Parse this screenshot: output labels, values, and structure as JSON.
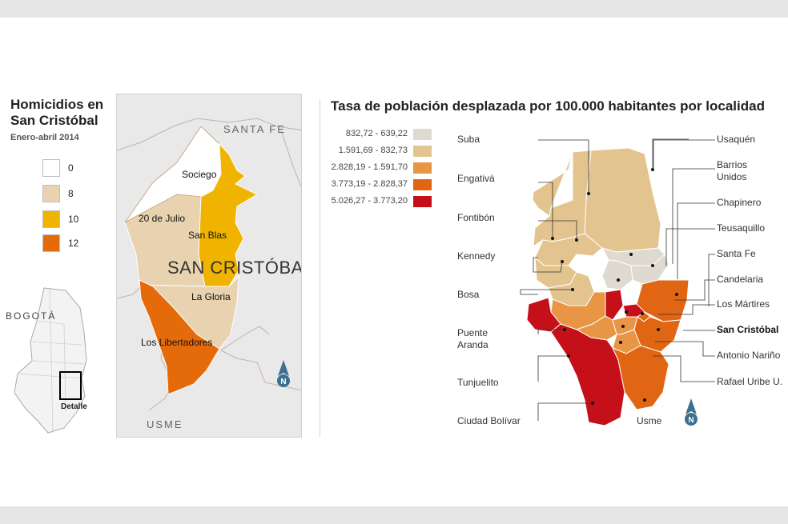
{
  "left_panel": {
    "title": "Homicidios en San Cristóbal",
    "subtitle": "Enero-abril 2014",
    "legend": [
      {
        "label": "0",
        "color": "#ffffff"
      },
      {
        "label": "8",
        "color": "#e8d2af"
      },
      {
        "label": "10",
        "color": "#f0b400"
      },
      {
        "label": "12",
        "color": "#e56b0a"
      }
    ],
    "inset_label": "BOGOTÁ",
    "detail_label": "Detalle",
    "map": {
      "region_labels": [
        "SANTA FE",
        "USME"
      ],
      "locality_label": "SAN CRISTÓBAL",
      "neighborhoods": [
        {
          "name": "Sociego",
          "homicides": 0
        },
        {
          "name": "20 de Julio",
          "homicides": 8
        },
        {
          "name": "San Blas",
          "homicides": 10
        },
        {
          "name": "La Gloria",
          "homicides": 8
        },
        {
          "name": "Los Libertadores",
          "homicides": 12
        }
      ]
    }
  },
  "right_panel": {
    "title": "Tasa de población desplazada por 100.000 habitantes por localidad",
    "legend": [
      {
        "label": "832,72 - 639,22",
        "color": "#dedad0"
      },
      {
        "label": "1.591,69 - 832,73",
        "color": "#e3c48f"
      },
      {
        "label": "2.828,19 - 1.591,70",
        "color": "#e89645"
      },
      {
        "label": "3.773,19 - 2.828,37",
        "color": "#e06614"
      },
      {
        "label": "5.026,27 - 3.773,20",
        "color": "#c5101a"
      }
    ],
    "localities_left": [
      "Suba",
      "Engativá",
      "Fontibón",
      "Kennedy",
      "Bosa",
      "Puente Aranda",
      "Tunjuelito",
      "Ciudad Bolívar"
    ],
    "localities_right": [
      "Usaquén",
      "Barrios Unidos",
      "Chapinero",
      "Teusaquillo",
      "Santa Fe",
      "Candelaria",
      "Los Mártires",
      "San Cristóbal",
      "Antonio Nariño",
      "Rafael Uribe U."
    ],
    "in_map_label": "Usme",
    "highlight": "San Cristóbal"
  },
  "north_symbol": "N"
}
